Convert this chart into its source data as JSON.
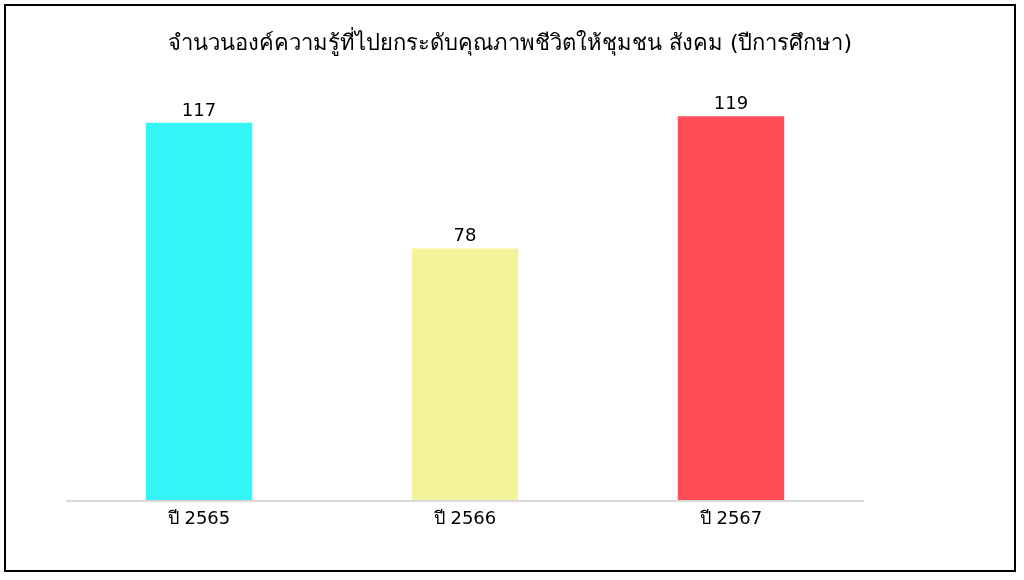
{
  "chart_data": {
    "type": "bar",
    "title": "จำนวนองค์ความรู้ที่ไปยกระดับคุณภาพชีวิตให้ชุมชน สังคม (ปีการศึกษา)",
    "categories": [
      "ปี 2565",
      "ปี 2566",
      "ปี 2567"
    ],
    "values": [
      117,
      78,
      119
    ],
    "colors": [
      "#33f5f5",
      "#f3f39b",
      "#ff4d57"
    ],
    "data_labels": true
  }
}
